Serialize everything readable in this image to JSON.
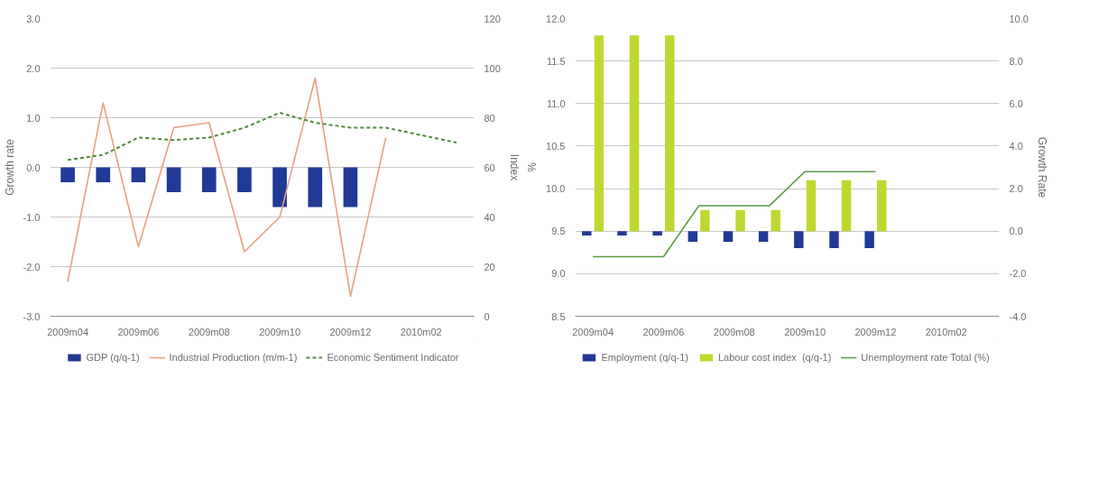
{
  "chart_data": [
    {
      "type": "bar",
      "ylabel": "Growth rate",
      "y2label": "Index",
      "grid": "y",
      "legend": "bottom",
      "categories": [
        "2009m04",
        null,
        "2009m06",
        null,
        "2009m08",
        null,
        "2009m10",
        null,
        "2009m12",
        null,
        "2010m02",
        null
      ],
      "ylim": [
        -3,
        3
      ],
      "yticks": [
        {
          "value": -3,
          "label": "-3.0"
        },
        {
          "value": -2,
          "label": "-2.0"
        },
        {
          "value": -1,
          "label": "-1.0"
        },
        {
          "value": 0,
          "label": "0.0"
        },
        {
          "value": 1,
          "label": "1.0"
        },
        {
          "value": 2,
          "label": "2.0"
        },
        {
          "value": 3,
          "label": "3.0"
        }
      ],
      "y2lim": [
        0,
        120
      ],
      "y2ticks": [
        0,
        20,
        40,
        60,
        80,
        100,
        120
      ],
      "series": [
        {
          "name": "GDP (q/q-1)",
          "color": "#213a96",
          "values": [
            -0.3,
            -0.3,
            -0.3,
            -0.5,
            -0.5,
            -0.5,
            -0.8,
            -0.8,
            -0.8,
            null,
            null,
            null
          ]
        },
        {
          "name": "Industrial Production (m/m-1)",
          "type": "line",
          "color": "#e8a07f",
          "line_style": "solid",
          "values": [
            -2.3,
            1.3,
            -1.6,
            0.8,
            0.9,
            -1.7,
            -1.0,
            1.8,
            -2.6,
            0.6,
            null,
            null
          ]
        },
        {
          "name": "Economic Sentiment Indicator",
          "type": "line",
          "axis": "y2",
          "color": "#4e8a3a",
          "line_style": "dashed",
          "values": [
            63,
            65,
            72,
            71,
            72,
            76,
            82,
            78,
            76,
            76,
            73,
            70
          ]
        }
      ]
    },
    {
      "type": "bar",
      "ylabel": "%",
      "y2label": "Growth Rate",
      "grid": "y",
      "legend": "bottom",
      "categories": [
        "2009m04",
        null,
        "2009m06",
        null,
        "2009m08",
        null,
        "2009m10",
        null,
        "2009m12",
        null,
        "2010m02",
        null
      ],
      "ylim": [
        8.5,
        12
      ],
      "yticks": [
        8.5,
        {
          "value": 9,
          "label": "9.0"
        },
        9.5,
        {
          "value": 10,
          "label": "10.0"
        },
        10.5,
        {
          "value": 11,
          "label": "11.0"
        },
        11.5,
        {
          "value": 12,
          "label": "12.0"
        }
      ],
      "y2lim": [
        -4,
        10
      ],
      "y2ticks": [
        {
          "value": -4,
          "label": "-4.0"
        },
        {
          "value": -2,
          "label": "-2.0"
        },
        {
          "value": 0,
          "label": "0.0"
        },
        {
          "value": 2,
          "label": "2.0"
        },
        {
          "value": 4,
          "label": "4.0"
        },
        {
          "value": 6,
          "label": "6.0"
        },
        {
          "value": 8,
          "label": "8.0"
        },
        {
          "value": 10,
          "label": "10.0"
        }
      ],
      "series": [
        {
          "name": "Employment (q/q-1)",
          "axis": "y2",
          "color": "#213a96",
          "values": [
            -0.2,
            -0.2,
            -0.2,
            -0.5,
            -0.5,
            -0.5,
            -0.8,
            -0.8,
            -0.8,
            null,
            null,
            null
          ]
        },
        {
          "name": "Labour cost index  (q/q-1)",
          "axis": "y2",
          "color": "#c0d72f",
          "values": [
            9.2,
            9.2,
            9.2,
            1.0,
            1.0,
            1.0,
            2.4,
            2.4,
            2.4,
            null,
            null,
            null
          ]
        },
        {
          "name": "Unemployment rate Total (%)",
          "type": "line",
          "color": "#5a9a44",
          "line_style": "solid",
          "values": [
            9.2,
            9.2,
            9.2,
            9.8,
            9.8,
            9.8,
            10.2,
            10.2,
            10.2,
            null,
            null,
            null
          ]
        }
      ]
    }
  ]
}
